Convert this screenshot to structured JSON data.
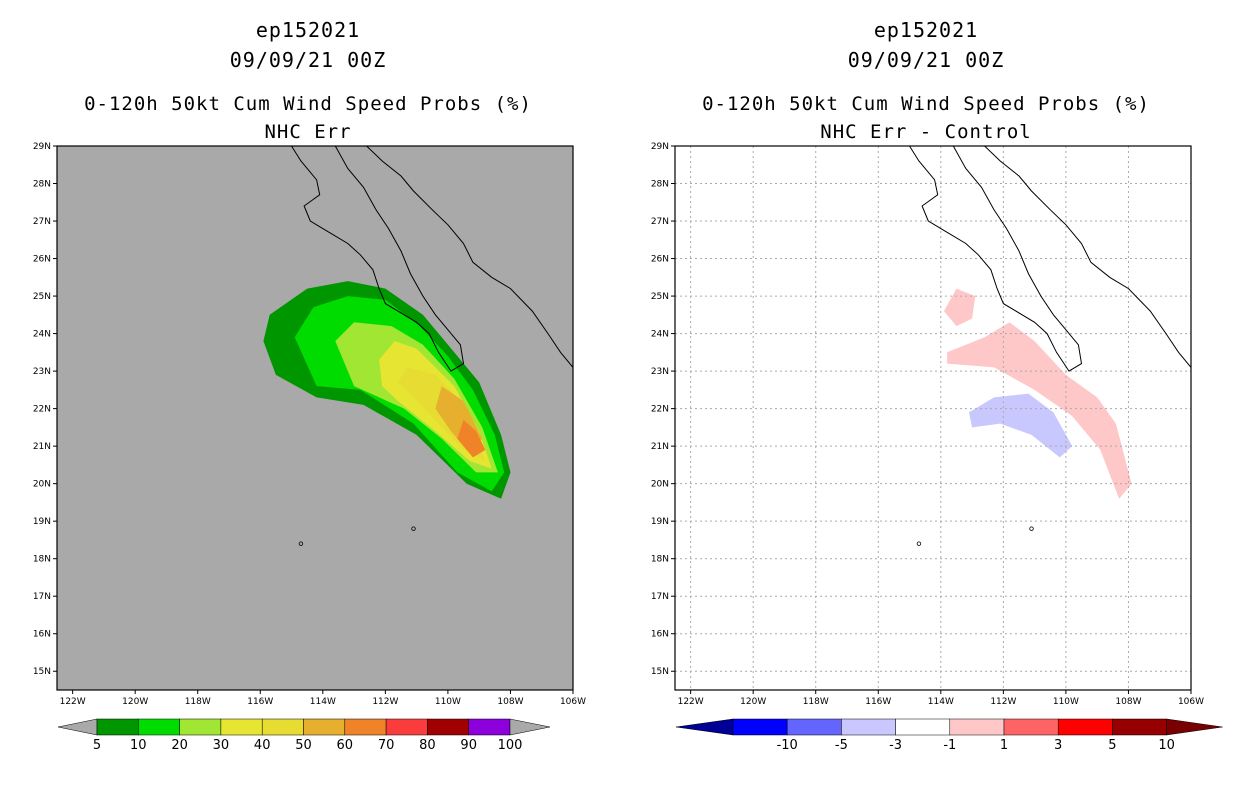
{
  "chart_data": [
    {
      "type": "filled-contour-map",
      "title": "ep152021",
      "date": "09/09/21 00Z",
      "subtitle": "0-120h 50kt Cum Wind Speed Probs (%)",
      "label": "NHC Err",
      "xlim": [
        -122.5,
        -106
      ],
      "ylim": [
        14.5,
        29
      ],
      "x_ticks": [
        "122W",
        "120W",
        "118W",
        "116W",
        "114W",
        "112W",
        "110W",
        "108W",
        "106W"
      ],
      "y_ticks": [
        "15N",
        "16N",
        "17N",
        "18N",
        "19N",
        "20N",
        "21N",
        "22N",
        "23N",
        "24N",
        "25N",
        "26N",
        "27N",
        "28N",
        "29N"
      ],
      "background": "#a9a9a9",
      "colorbar": {
        "labels": [
          "5",
          "10",
          "20",
          "30",
          "40",
          "50",
          "60",
          "70",
          "80",
          "90",
          "100"
        ],
        "colors": [
          "#009600",
          "#00dc00",
          "#a0e632",
          "#e6e632",
          "#e6dc32",
          "#e6af2d",
          "#f08228",
          "#fa3c3c",
          "#a00000",
          "#8c00dc"
        ],
        "end_color": "#a9a9a9"
      },
      "contours": [
        {
          "level": 5,
          "color": "#009600",
          "polygon": [
            [
              -115.9,
              23.8
            ],
            [
              -115.7,
              24.5
            ],
            [
              -114.5,
              25.2
            ],
            [
              -113.2,
              25.4
            ],
            [
              -112,
              25.2
            ],
            [
              -110.8,
              24.5
            ],
            [
              -109.8,
              23.5
            ],
            [
              -109,
              22.7
            ],
            [
              -108.3,
              21.3
            ],
            [
              -108.0,
              20.3
            ],
            [
              -108.3,
              19.6
            ],
            [
              -109.4,
              20.0
            ],
            [
              -111,
              21.3
            ],
            [
              -112.7,
              22.1
            ],
            [
              -114.2,
              22.3
            ],
            [
              -115.5,
              22.9
            ]
          ]
        },
        {
          "level": 10,
          "color": "#00dc00",
          "polygon": [
            [
              -114.9,
              23.9
            ],
            [
              -114.3,
              24.7
            ],
            [
              -113.2,
              25.0
            ],
            [
              -112,
              24.9
            ],
            [
              -110.9,
              24.2
            ],
            [
              -110,
              23.4
            ],
            [
              -109.2,
              22.5
            ],
            [
              -108.5,
              21.3
            ],
            [
              -108.2,
              20.3
            ],
            [
              -108.6,
              19.8
            ],
            [
              -109.7,
              20.3
            ],
            [
              -111.1,
              21.6
            ],
            [
              -112.8,
              22.5
            ],
            [
              -114.2,
              22.6
            ]
          ]
        },
        {
          "level": 20,
          "color": "#a0e632",
          "polygon": [
            [
              -113.6,
              23.8
            ],
            [
              -113,
              24.3
            ],
            [
              -111.8,
              24.2
            ],
            [
              -110.8,
              23.7
            ],
            [
              -109.8,
              22.8
            ],
            [
              -108.9,
              21.5
            ],
            [
              -108.4,
              20.3
            ],
            [
              -109.1,
              20.3
            ],
            [
              -110.2,
              21.2
            ],
            [
              -111.4,
              22.0
            ],
            [
              -113,
              22.6
            ]
          ]
        },
        {
          "level": 30,
          "color": "#e6e632",
          "polygon": [
            [
              -112.2,
              23.3
            ],
            [
              -111.7,
              23.8
            ],
            [
              -111,
              23.6
            ],
            [
              -109.8,
              22.6
            ],
            [
              -109.0,
              21.4
            ],
            [
              -108.6,
              20.4
            ],
            [
              -109.3,
              20.6
            ],
            [
              -110.4,
              21.4
            ],
            [
              -111.6,
              22.2
            ],
            [
              -112.1,
              22.6
            ]
          ]
        },
        {
          "level": 40,
          "color": "#e6dc32",
          "polygon": [
            [
              -111.3,
              23.1
            ],
            [
              -110.4,
              22.9
            ],
            [
              -109.8,
              22.4
            ],
            [
              -109.2,
              21.4
            ],
            [
              -108.8,
              20.6
            ],
            [
              -109.5,
              20.9
            ],
            [
              -110.3,
              21.6
            ],
            [
              -111.1,
              22.3
            ],
            [
              -111.6,
              22.7
            ]
          ]
        },
        {
          "level": 50,
          "color": "#e6af2d",
          "polygon": [
            [
              -110.2,
              22.6
            ],
            [
              -109.5,
              22.2
            ],
            [
              -108.9,
              21.2
            ],
            [
              -109.3,
              20.8
            ],
            [
              -109.9,
              21.4
            ],
            [
              -110.4,
              22.0
            ]
          ]
        },
        {
          "level": 60,
          "color": "#f08228",
          "polygon": [
            [
              -109.5,
              21.7
            ],
            [
              -109.1,
              21.4
            ],
            [
              -108.8,
              20.9
            ],
            [
              -109.2,
              20.7
            ],
            [
              -109.7,
              21.2
            ]
          ]
        }
      ]
    },
    {
      "type": "filled-contour-map",
      "title": "ep152021",
      "date": "09/09/21 00Z",
      "subtitle": "0-120h 50kt Cum Wind Speed Probs (%)",
      "label": "NHC Err - Control",
      "xlim": [
        -122.5,
        -106
      ],
      "ylim": [
        14.5,
        29
      ],
      "x_ticks": [
        "122W",
        "120W",
        "118W",
        "116W",
        "114W",
        "112W",
        "110W",
        "108W",
        "106W"
      ],
      "y_ticks": [
        "15N",
        "16N",
        "17N",
        "18N",
        "19N",
        "20N",
        "21N",
        "22N",
        "23N",
        "24N",
        "25N",
        "26N",
        "27N",
        "28N",
        "29N"
      ],
      "background": "#ffffff",
      "grid": "dotted",
      "colorbar": {
        "labels": [
          "-10",
          "-5",
          "-3",
          "-1",
          "1",
          "3",
          "5",
          "10"
        ],
        "colors": [
          "#000096",
          "#0000ff",
          "#6464ff",
          "#c8c8ff",
          "#ffffff",
          "#ffc8c8",
          "#ff6464",
          "#ff0000",
          "#960000"
        ],
        "end_left": "#000096",
        "end_right": "#780000"
      },
      "contours": [
        {
          "level": 1,
          "color": "#ffc8c8",
          "polygon": [
            [
              -113.9,
              24.6
            ],
            [
              -113.5,
              25.2
            ],
            [
              -112.9,
              25.0
            ],
            [
              -113.0,
              24.4
            ],
            [
              -113.5,
              24.2
            ]
          ]
        },
        {
          "level": 1,
          "color": "#ffc8c8",
          "polygon": [
            [
              -113.8,
              23.5
            ],
            [
              -112.6,
              23.9
            ],
            [
              -111.8,
              24.3
            ],
            [
              -111,
              23.8
            ],
            [
              -110,
              22.9
            ],
            [
              -109,
              22.3
            ],
            [
              -108.4,
              21.6
            ],
            [
              -107.9,
              20.0
            ],
            [
              -108.3,
              19.6
            ],
            [
              -108.9,
              20.9
            ],
            [
              -109.8,
              21.8
            ],
            [
              -111,
              22.5
            ],
            [
              -112.3,
              23.1
            ],
            [
              -113.8,
              23.2
            ]
          ]
        },
        {
          "level": -1,
          "color": "#c8c8ff",
          "polygon": [
            [
              -113.1,
              21.9
            ],
            [
              -112.3,
              22.3
            ],
            [
              -111.2,
              22.4
            ],
            [
              -110.4,
              21.9
            ],
            [
              -109.8,
              21.0
            ],
            [
              -110.2,
              20.7
            ],
            [
              -111.1,
              21.3
            ],
            [
              -112.1,
              21.6
            ],
            [
              -113.0,
              21.5
            ]
          ]
        }
      ]
    }
  ]
}
